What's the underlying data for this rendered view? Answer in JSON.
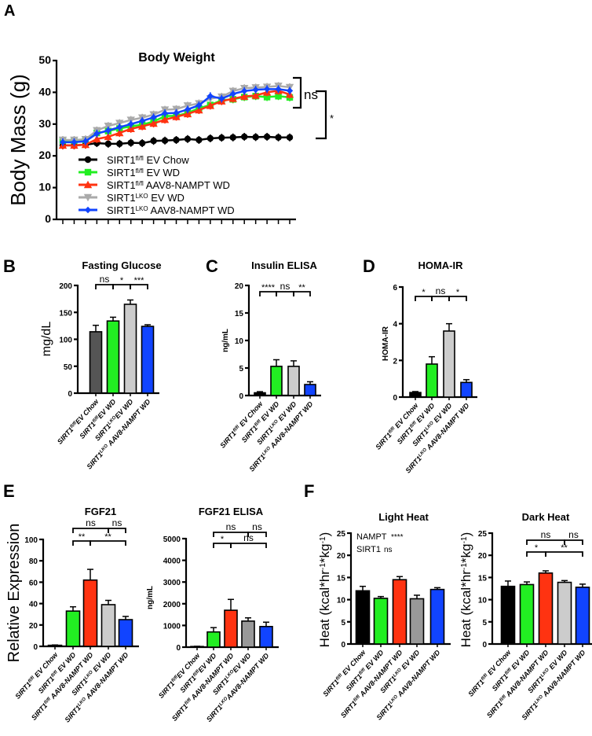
{
  "panel_letters": {
    "A": "A",
    "B": "B",
    "C": "C",
    "D": "D",
    "E": "E",
    "F": "F"
  },
  "chart_data": [
    {
      "panel": "A",
      "type": "line",
      "title": "Body Weight",
      "xlabel": "",
      "ylabel": [
        {
          "text": "Body Mass (g)"
        }
      ],
      "ylim": [
        0,
        50
      ],
      "yticks": [
        "0",
        "10",
        "20",
        "30",
        "40",
        "50"
      ],
      "x": [
        1,
        2,
        3,
        4,
        5,
        6,
        7,
        8,
        9,
        10,
        11,
        12,
        13,
        14,
        15,
        16,
        17,
        18,
        19,
        20,
        21
      ],
      "series": [
        {
          "base": "SIRT1",
          "sup": "fl/fl",
          "rest": " EV Chow",
          "color": "#000000",
          "marker": "circle",
          "values": [
            23.3,
            23.3,
            23.5,
            24.0,
            23.8,
            23.8,
            24.1,
            24.0,
            24.7,
            24.8,
            25.0,
            25.3,
            25.0,
            25.5,
            25.7,
            25.8,
            26.0,
            25.9,
            26.0,
            25.8,
            25.8
          ]
        },
        {
          "base": "SIRT1",
          "sup": "fl/fl",
          "rest": " EV WD",
          "color": "#22ee22",
          "marker": "square",
          "values": [
            24.8,
            24.8,
            25.0,
            27.2,
            27.8,
            28.6,
            29.3,
            29.8,
            30.8,
            32.5,
            32.6,
            33.5,
            35.0,
            36.0,
            37.5,
            37.8,
            38.5,
            38.8,
            38.5,
            38.8,
            38.4
          ]
        },
        {
          "base": "SIRT1",
          "sup": "fl/fl",
          "rest": " AAV8-NAMPT WD",
          "color": "#ff3311",
          "marker": "triangle",
          "values": [
            23.3,
            23.3,
            23.5,
            25.3,
            26.0,
            27.2,
            28.5,
            29.3,
            30.2,
            31.4,
            32.3,
            33.2,
            34.4,
            35.8,
            37.2,
            38.0,
            38.7,
            39.0,
            40.0,
            40.5,
            39.3
          ]
        },
        {
          "base": "SIRT1",
          "sup": "LKO",
          "rest": " EV WD",
          "color": "#aaaaaa",
          "marker": "triangle-down",
          "values": [
            25.0,
            25.0,
            25.2,
            28.0,
            29.4,
            30.3,
            31.3,
            32.0,
            33.0,
            34.5,
            34.7,
            35.8,
            36.5,
            38.0,
            38.6,
            40.4,
            41.3,
            41.5,
            41.7,
            42.0,
            41.6
          ]
        },
        {
          "base": "SIRT1",
          "sup": "LKO",
          "rest": " AAV8-NAMPT WD",
          "color": "#1144ff",
          "marker": "diamond",
          "values": [
            24.3,
            24.3,
            24.6,
            27.0,
            28.0,
            29.0,
            30.0,
            31.0,
            32.1,
            33.4,
            33.5,
            34.6,
            35.9,
            38.8,
            38.0,
            39.5,
            40.4,
            40.8,
            41.0,
            41.0,
            40.5
          ]
        }
      ],
      "annotations": [
        {
          "text": "ns"
        },
        {
          "text": "*"
        }
      ],
      "legend": "inside-bottom"
    },
    {
      "panel": "B",
      "type": "bar",
      "title": "Fasting Glucose",
      "ylabel": [
        {
          "text": "mg/dL"
        }
      ],
      "ylim": [
        0,
        200
      ],
      "yticks": [
        "0",
        "50",
        "100",
        "150",
        "200"
      ],
      "categories": [
        {
          "base": "SIRT1",
          "sup": "fl/fl",
          "rest": "EV Chow"
        },
        {
          "base": "SIRT1",
          "sup": "fl/fl",
          "rest": "EV WD"
        },
        {
          "base": "SIRT1",
          "sup": "LKO",
          "rest": "EV WD"
        },
        {
          "base": "SIRT1",
          "sup": "LKO",
          "rest": " AAV8-NAMPT WD"
        }
      ],
      "values": [
        114,
        134,
        165,
        124
      ],
      "sem": [
        12,
        7,
        8,
        3
      ],
      "colors": [
        "#555555",
        "#22ee22",
        "#cccccc",
        "#1144ff"
      ],
      "comparisons": [
        {
          "from": 0,
          "to": 1,
          "label": "ns",
          "level": 0
        },
        {
          "from": 1,
          "to": 2,
          "label": "*",
          "level": 0
        },
        {
          "from": 2,
          "to": 3,
          "label": "***",
          "level": 0
        }
      ]
    },
    {
      "panel": "C",
      "type": "bar",
      "title": "Insulin ELISA",
      "ylabel": [
        {
          "text": "ng/mL"
        }
      ],
      "ylim": [
        0,
        20
      ],
      "yticks": [
        "0",
        "5",
        "10",
        "15",
        "20"
      ],
      "categories": [
        {
          "base": "SIRT1",
          "sup": "fl/fl",
          "rest": " EV Chow"
        },
        {
          "base": "SIRT1",
          "sup": "fl/fl",
          "rest": " EV WD"
        },
        {
          "base": "SIRT1",
          "sup": "LKO",
          "rest": " EV WD"
        },
        {
          "base": "SIRT1",
          "sup": "LKO",
          "rest": " AAV8-NAMPT WD"
        }
      ],
      "values": [
        0.5,
        5.3,
        5.3,
        2.0
      ],
      "sem": [
        0.2,
        1.2,
        1.0,
        0.5
      ],
      "colors": [
        "#000000",
        "#22ee22",
        "#cccccc",
        "#1144ff"
      ],
      "comparisons": [
        {
          "from": 0,
          "to": 1,
          "label": "****",
          "level": 0
        },
        {
          "from": 1,
          "to": 2,
          "label": "ns",
          "level": 0
        },
        {
          "from": 2,
          "to": 3,
          "label": "**",
          "level": 0
        }
      ]
    },
    {
      "panel": "D",
      "type": "bar",
      "title": "HOMA-IR",
      "ylabel": [
        {
          "text": "HOMA-IR"
        }
      ],
      "ylim": [
        0,
        6
      ],
      "yticks": [
        "0",
        "2",
        "4",
        "6"
      ],
      "categories": [
        {
          "base": "SIRT1",
          "sup": "fl/fl",
          "rest": " EV Chow"
        },
        {
          "base": "SIRT1",
          "sup": "fl/fl",
          "rest": " EV WD"
        },
        {
          "base": "SIRT1",
          "sup": "LKO",
          "rest": " EV WD"
        },
        {
          "base": "SIRT1",
          "sup": "LKO",
          "rest": " AAV8-NAMPT WD"
        }
      ],
      "values": [
        0.25,
        1.8,
        3.6,
        0.8
      ],
      "sem": [
        0.05,
        0.4,
        0.4,
        0.15
      ],
      "colors": [
        "#000000",
        "#22ee22",
        "#cccccc",
        "#1144ff"
      ],
      "comparisons": [
        {
          "from": 0,
          "to": 1,
          "label": "*",
          "level": 0
        },
        {
          "from": 1,
          "to": 2,
          "label": "ns",
          "level": 0
        },
        {
          "from": 2,
          "to": 3,
          "label": "*",
          "level": 0
        }
      ]
    },
    {
      "panel": "E1",
      "type": "bar",
      "title": "FGF21",
      "ylabel": [
        {
          "text": "Relative Expression"
        }
      ],
      "ylim": [
        0,
        100
      ],
      "yticks": [
        "0",
        "20",
        "40",
        "60",
        "80",
        "100"
      ],
      "categories": [
        {
          "base": "SIRT1",
          "sup": "fl/fl",
          "rest": " EV Chow"
        },
        {
          "base": "SIRT1",
          "sup": "fl/fl",
          "rest": " EV WD"
        },
        {
          "base": "SIRT1",
          "sup": "fl/fl",
          "rest": " AAV8-NAMPT WD"
        },
        {
          "base": "SIRT1",
          "sup": "LKO",
          "rest": " EV WD"
        },
        {
          "base": "SIRT1",
          "sup": "LKO",
          "rest": " AAV8-NAMPT WD"
        }
      ],
      "values": [
        1,
        33,
        62,
        39,
        25
      ],
      "sem": [
        0.3,
        4,
        10,
        4,
        3
      ],
      "colors": [
        "#000000",
        "#22ee22",
        "#ff3311",
        "#cccccc",
        "#1144ff"
      ],
      "comparisons": [
        {
          "from": 1,
          "to": 2,
          "label": "**",
          "level": 0
        },
        {
          "from": 2,
          "to": 4,
          "label": "**",
          "level": 0
        },
        {
          "from": 1,
          "to": 3,
          "label": "ns",
          "level": 1
        },
        {
          "from": 3,
          "to": 4,
          "label": "ns",
          "level": 1
        }
      ]
    },
    {
      "panel": "E2",
      "type": "bar",
      "title": "FGF21 ELISA",
      "ylabel": [
        {
          "text": "ng/mL"
        }
      ],
      "ylim": [
        0,
        5000
      ],
      "yticks": [
        "0",
        "1000",
        "2000",
        "3000",
        "4000",
        "5000"
      ],
      "categories": [
        {
          "base": "SIRT1",
          "sup": "fl/fl",
          "rest": "EV Chow"
        },
        {
          "base": "SIRT1",
          "sup": "fl/fl",
          "rest": "EV WD"
        },
        {
          "base": "SIRT1",
          "sup": "fl/fl",
          "rest": " AAV8-NAMPT WD"
        },
        {
          "base": "SIRT1",
          "sup": "LKO",
          "rest": "EV WD"
        },
        {
          "base": "SIRT1",
          "sup": "LKO",
          "rest": "AAV8-NAMPT WD"
        }
      ],
      "values": [
        30,
        700,
        1700,
        1200,
        950
      ],
      "sem": [
        10,
        200,
        500,
        150,
        200
      ],
      "colors": [
        "#000000",
        "#22ee22",
        "#ff3311",
        "#999999",
        "#1144ff"
      ],
      "comparisons": [
        {
          "from": 1,
          "to": 2,
          "label": "*",
          "level": 0
        },
        {
          "from": 2,
          "to": 4,
          "label": "ns",
          "level": 0
        },
        {
          "from": 1,
          "to": 3,
          "label": "ns",
          "level": 1
        },
        {
          "from": 3,
          "to": 4,
          "label": "ns",
          "level": 1
        }
      ]
    },
    {
      "panel": "F1",
      "type": "bar",
      "title": "Light Heat",
      "ylabel": [
        {
          "text": "Heat (kcal*hr"
        },
        {
          "text": "-1",
          "sup": true
        },
        {
          "text": "*kg"
        },
        {
          "text": "-1",
          "sup": true
        },
        {
          "text": ")"
        }
      ],
      "ylim": [
        0,
        25
      ],
      "yticks": [
        "0",
        "5",
        "10",
        "15",
        "20",
        "25"
      ],
      "categories": [
        {
          "base": "SIRT1",
          "sup": "fl/fl",
          "rest": " EV Chow"
        },
        {
          "base": "SIRT1",
          "sup": "fl/fl",
          "rest": " EV WD"
        },
        {
          "base": "SIRT1",
          "sup": "fl/fl",
          "rest": " AAV8-NAMPT WD"
        },
        {
          "base": "SIRT1",
          "sup": "LKO",
          "rest": " EV WD"
        },
        {
          "base": "SIRT1",
          "sup": "LKO",
          "rest": " AAV8-NAMPT WD"
        }
      ],
      "values": [
        12,
        10.3,
        14.5,
        10.2,
        12.3
      ],
      "sem": [
        1.0,
        0.4,
        0.7,
        0.8,
        0.4
      ],
      "colors": [
        "#000000",
        "#22ee22",
        "#ff3311",
        "#999999",
        "#1144ff"
      ],
      "stats": [
        {
          "factor": "NAMPT",
          "sig": "****"
        },
        {
          "factor": "SIRT1",
          "sig": "ns"
        }
      ],
      "comparisons": []
    },
    {
      "panel": "F2",
      "type": "bar",
      "title": "Dark Heat",
      "ylabel": [
        {
          "text": "Heat (kcal*hr"
        },
        {
          "text": "-1",
          "sup": true
        },
        {
          "text": "*kg"
        },
        {
          "text": "-1",
          "sup": true
        },
        {
          "text": ")"
        }
      ],
      "ylim": [
        0,
        25
      ],
      "yticks": [
        "0",
        "5",
        "10",
        "15",
        "20",
        "25"
      ],
      "categories": [
        {
          "base": "SIRT1",
          "sup": "fl/fl",
          "rest": " EV Chow"
        },
        {
          "base": "SIRT1",
          "sup": "fl/fl",
          "rest": " EV WD"
        },
        {
          "base": "SIRT1",
          "sup": "fl/fl",
          "rest": " AAV8-NAMPT WD"
        },
        {
          "base": "SIRT1",
          "sup": "LKO",
          "rest": " EV WD"
        },
        {
          "base": "SIRT1",
          "sup": "LKO",
          "rest": " AAV8-NAMPT WD"
        }
      ],
      "values": [
        13,
        13.4,
        16,
        13.9,
        12.8
      ],
      "sem": [
        1.2,
        0.6,
        0.5,
        0.4,
        0.7
      ],
      "colors": [
        "#000000",
        "#22ee22",
        "#ff3311",
        "#cccccc",
        "#1144ff"
      ],
      "comparisons": [
        {
          "from": 1,
          "to": 2,
          "label": "*",
          "level": 0
        },
        {
          "from": 2,
          "to": 4,
          "label": "**",
          "level": 0
        },
        {
          "from": 1,
          "to": 3,
          "label": "ns",
          "level": 1
        },
        {
          "from": 3,
          "to": 4,
          "label": "ns",
          "level": 1
        }
      ]
    }
  ]
}
